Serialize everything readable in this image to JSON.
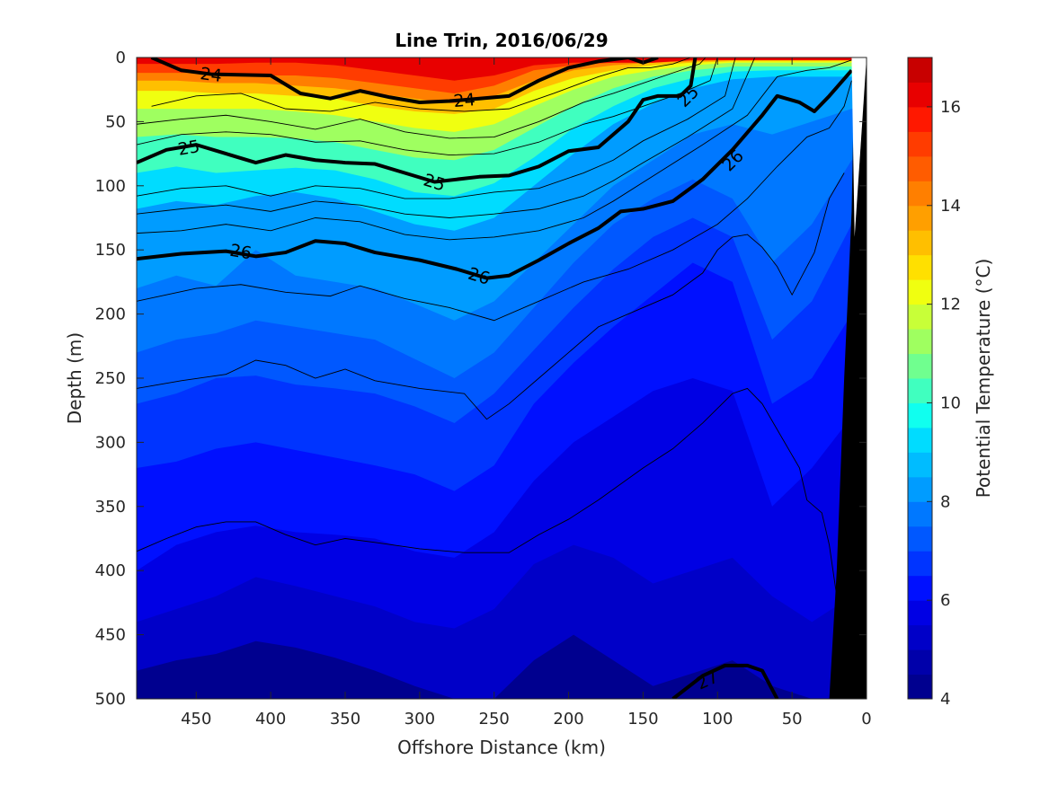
{
  "chart_data": {
    "type": "contourf",
    "title": "Line Trin, 2016/06/29",
    "xlabel": "Offshore Distance (km)",
    "ylabel": "Depth (m)",
    "colorbar_label": "Potential Temperature (°C)",
    "xlim": [
      490,
      0
    ],
    "ylim": [
      0,
      500
    ],
    "x_ticks": [
      450,
      400,
      350,
      300,
      250,
      200,
      150,
      100,
      50,
      0
    ],
    "y_ticks": [
      0,
      50,
      100,
      150,
      200,
      250,
      300,
      350,
      400,
      450,
      500
    ],
    "clim": [
      4,
      17
    ],
    "colorbar_ticks": [
      4,
      6,
      8,
      10,
      12,
      14,
      16
    ],
    "temperature_levels": [
      4,
      4.5,
      5,
      5.5,
      6,
      6.5,
      7,
      7.5,
      8,
      8.5,
      9,
      9.5,
      10,
      10.5,
      11,
      11.5,
      12,
      12.5,
      13,
      13.5,
      14,
      14.5,
      15,
      15.5,
      16,
      16.5,
      17
    ],
    "level_colors": [
      "#00008f",
      "#0000aa",
      "#0000c8",
      "#0000e4",
      "#0010ff",
      "#0034ff",
      "#0058ff",
      "#0078ff",
      "#009cff",
      "#00bcff",
      "#00dcff",
      "#10ffef",
      "#40ffbf",
      "#70ff8f",
      "#9fff60",
      "#c8ff38",
      "#f0ff10",
      "#ffe000",
      "#ffbf00",
      "#ff9f00",
      "#ff7f00",
      "#ff5c00",
      "#ff3c00",
      "#ff1800",
      "#e80000",
      "#c80000",
      "#a00000"
    ],
    "temperature_isotherms": [
      {
        "level": 16,
        "depth": [
          5,
          5,
          5,
          4,
          4,
          6,
          10,
          14,
          18,
          14,
          6,
          4,
          4,
          4,
          2,
          2,
          2,
          2,
          2
        ]
      },
      {
        "level": 15,
        "depth": [
          12,
          12,
          12,
          14,
          14,
          16,
          20,
          24,
          28,
          22,
          10,
          6,
          4,
          4,
          2,
          2,
          2,
          2,
          2
        ]
      },
      {
        "level": 14,
        "depth": [
          18,
          18,
          20,
          20,
          22,
          24,
          28,
          32,
          36,
          30,
          18,
          10,
          6,
          4,
          3,
          2,
          2,
          2,
          2
        ]
      },
      {
        "level": 13,
        "depth": [
          26,
          26,
          28,
          28,
          30,
          32,
          38,
          42,
          44,
          40,
          26,
          16,
          10,
          6,
          4,
          3,
          3,
          3,
          3
        ]
      },
      {
        "level": 12,
        "depth": [
          40,
          40,
          40,
          40,
          42,
          45,
          50,
          55,
          58,
          52,
          38,
          25,
          15,
          10,
          6,
          4,
          4,
          4,
          4
        ]
      },
      {
        "level": 11,
        "depth": [
          62,
          60,
          62,
          62,
          63,
          66,
          72,
          78,
          80,
          72,
          55,
          38,
          24,
          15,
          10,
          7,
          7,
          7,
          7
        ]
      },
      {
        "level": 10,
        "depth": [
          90,
          85,
          90,
          88,
          86,
          88,
          95,
          105,
          108,
          98,
          78,
          55,
          38,
          24,
          16,
          11,
          10,
          10,
          10
        ]
      },
      {
        "level": 9,
        "depth": [
          118,
          112,
          115,
          108,
          105,
          110,
          120,
          130,
          135,
          125,
          100,
          75,
          52,
          36,
          24,
          17,
          15,
          15,
          15
        ]
      },
      {
        "level": 8,
        "depth": [
          180,
          170,
          178,
          150,
          170,
          175,
          180,
          192,
          205,
          190,
          160,
          130,
          100,
          80,
          60,
          52,
          60,
          50,
          40
        ]
      },
      {
        "level": 7.5,
        "depth": [
          230,
          220,
          215,
          205,
          210,
          215,
          220,
          235,
          250,
          230,
          195,
          160,
          130,
          110,
          95,
          110,
          160,
          130,
          80
        ]
      },
      {
        "level": 7,
        "depth": [
          270,
          262,
          250,
          248,
          255,
          258,
          262,
          272,
          285,
          262,
          228,
          195,
          165,
          140,
          125,
          140,
          220,
          190,
          130
        ]
      },
      {
        "level": 6.5,
        "depth": [
          320,
          315,
          305,
          300,
          306,
          312,
          318,
          325,
          338,
          318,
          270,
          238,
          210,
          185,
          160,
          175,
          270,
          250,
          200
        ]
      },
      {
        "level": 6,
        "depth": [
          400,
          380,
          370,
          365,
          370,
          372,
          375,
          385,
          390,
          370,
          330,
          300,
          280,
          260,
          250,
          260,
          350,
          320,
          280
        ]
      },
      {
        "level": 5.5,
        "depth": [
          440,
          430,
          420,
          405,
          412,
          420,
          428,
          440,
          445,
          430,
          395,
          380,
          390,
          410,
          400,
          390,
          420,
          440,
          420
        ]
      },
      {
        "level": 5,
        "depth": [
          478,
          470,
          465,
          455,
          460,
          468,
          478,
          490,
          500,
          500,
          470,
          450,
          470,
          490,
          480,
          470,
          490,
          500,
          500
        ]
      }
    ],
    "density_isopycnals": [
      {
        "level": 24,
        "label": "24",
        "bold": true,
        "x": [
          480,
          460,
          440,
          400,
          380,
          360,
          340,
          320,
          300,
          280,
          260,
          240,
          220,
          200,
          180,
          160,
          150,
          140
        ],
        "depth": [
          0,
          10,
          13,
          14,
          28,
          32,
          26,
          31,
          35,
          34,
          32,
          30,
          18,
          8,
          3,
          0,
          4,
          0
        ]
      },
      {
        "level": 25,
        "label": "25",
        "bold": true,
        "x": [
          490,
          470,
          450,
          430,
          410,
          390,
          370,
          350,
          330,
          310,
          290,
          260,
          240,
          220,
          200,
          180,
          160,
          150,
          140,
          125,
          118,
          115
        ],
        "depth": [
          82,
          72,
          68,
          75,
          82,
          76,
          80,
          82,
          83,
          90,
          97,
          93,
          92,
          85,
          73,
          70,
          50,
          33,
          30,
          30,
          22,
          0
        ]
      },
      {
        "level": 26,
        "label": "26",
        "bold": true,
        "x": [
          490,
          460,
          430,
          410,
          390,
          370,
          350,
          330,
          300,
          275,
          255,
          240,
          220,
          200,
          180,
          165,
          150,
          130,
          110,
          90,
          70,
          60,
          45,
          35,
          25,
          10
        ],
        "depth": [
          157,
          153,
          151,
          155,
          152,
          143,
          145,
          152,
          158,
          165,
          172,
          170,
          158,
          145,
          133,
          120,
          118,
          112,
          95,
          72,
          45,
          30,
          35,
          42,
          30,
          10
        ]
      },
      {
        "level": 27,
        "label": "27",
        "bold": true,
        "x": [
          130,
          110,
          95,
          80,
          70,
          60
        ],
        "depth": [
          500,
          482,
          474,
          474,
          478,
          500
        ]
      }
    ],
    "thin_contours": [
      {
        "x": [
          480,
          450,
          420,
          390,
          360,
          330,
          300,
          270,
          240,
          210,
          180,
          160,
          145,
          130,
          118,
          113
        ],
        "depth": [
          38,
          30,
          28,
          40,
          42,
          35,
          40,
          42,
          40,
          28,
          15,
          8,
          8,
          5,
          0,
          0
        ]
      },
      {
        "x": [
          490,
          460,
          430,
          400,
          370,
          340,
          310,
          280,
          250,
          220,
          190,
          170,
          150,
          130,
          112,
          108
        ],
        "depth": [
          52,
          48,
          45,
          50,
          56,
          48,
          58,
          63,
          62,
          50,
          35,
          28,
          20,
          12,
          5,
          0
        ]
      },
      {
        "x": [
          490,
          460,
          430,
          400,
          370,
          340,
          310,
          280,
          250,
          220,
          190,
          170,
          150,
          125,
          105,
          100
        ],
        "depth": [
          68,
          60,
          58,
          60,
          66,
          65,
          72,
          76,
          75,
          66,
          52,
          46,
          38,
          28,
          18,
          0
        ]
      },
      {
        "x": [
          490,
          460,
          430,
          400,
          370,
          340,
          310,
          280,
          250,
          220,
          190,
          170,
          150,
          120,
          95,
          88
        ],
        "depth": [
          108,
          102,
          100,
          108,
          100,
          102,
          110,
          110,
          105,
          102,
          90,
          80,
          65,
          48,
          30,
          0
        ]
      },
      {
        "x": [
          490,
          460,
          430,
          400,
          370,
          340,
          310,
          280,
          250,
          220,
          190,
          170,
          150,
          120,
          90,
          75
        ],
        "depth": [
          122,
          118,
          115,
          120,
          112,
          115,
          122,
          125,
          122,
          118,
          108,
          96,
          82,
          62,
          40,
          0
        ]
      },
      {
        "x": [
          490,
          460,
          430,
          400,
          370,
          340,
          310,
          280,
          250,
          220,
          190,
          170,
          140,
          110,
          80,
          60,
          40,
          25,
          10
        ],
        "depth": [
          137,
          135,
          130,
          135,
          125,
          128,
          138,
          142,
          140,
          135,
          125,
          112,
          90,
          68,
          45,
          15,
          10,
          8,
          2
        ]
      },
      {
        "x": [
          490,
          470,
          450,
          420,
          390,
          360,
          340,
          310,
          280,
          250,
          220,
          190,
          160,
          130,
          100,
          80,
          60,
          40,
          25,
          15,
          10
        ],
        "depth": [
          190,
          185,
          180,
          177,
          183,
          186,
          178,
          188,
          195,
          205,
          190,
          175,
          165,
          150,
          130,
          110,
          85,
          62,
          55,
          38,
          18
        ]
      },
      {
        "x": [
          490,
          460,
          430,
          410,
          390,
          370,
          350,
          330,
          300,
          270,
          255,
          240,
          220,
          200,
          180,
          160,
          130,
          110,
          100,
          90,
          80,
          70,
          60,
          50,
          35,
          25,
          15
        ],
        "depth": [
          258,
          252,
          247,
          236,
          240,
          250,
          243,
          252,
          258,
          262,
          282,
          270,
          250,
          230,
          210,
          200,
          185,
          168,
          150,
          140,
          138,
          148,
          163,
          185,
          152,
          110,
          90
        ]
      },
      {
        "x": [
          490,
          470,
          450,
          430,
          410,
          390,
          370,
          350,
          330,
          300,
          270,
          240,
          220,
          200,
          180,
          150,
          130,
          110,
          90,
          80,
          70,
          60,
          50,
          45,
          40,
          30,
          25,
          20
        ],
        "depth": [
          385,
          375,
          366,
          362,
          362,
          372,
          380,
          375,
          378,
          383,
          386,
          386,
          372,
          360,
          345,
          320,
          305,
          285,
          262,
          258,
          270,
          290,
          310,
          320,
          345,
          355,
          380,
          420
        ]
      }
    ],
    "bottom_topography": {
      "x": [
        25,
        20,
        15,
        10,
        8,
        0
      ],
      "depth": [
        500,
        400,
        250,
        120,
        0,
        0
      ],
      "color": "#000000"
    }
  }
}
